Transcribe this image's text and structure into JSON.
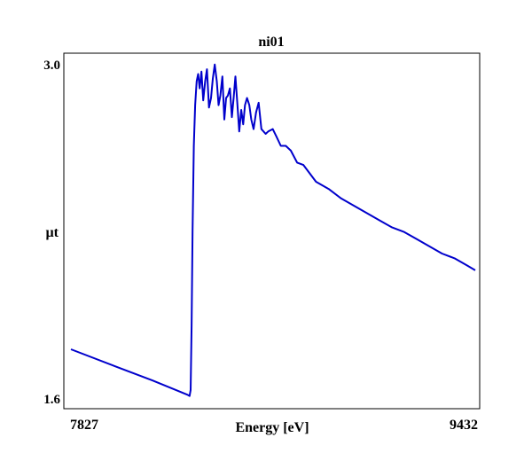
{
  "chart_data": {
    "type": "line",
    "title": "ni01",
    "xlabel": "Energy [eV]",
    "ylabel": "µt",
    "xlim": [
      7827,
      9432
    ],
    "ylim": [
      1.6,
      3.0
    ],
    "x_tick_labels": [
      "7827",
      "9432"
    ],
    "y_tick_labels": [
      "1.6",
      "3.0"
    ],
    "grid": false,
    "line_color": "#0000cc",
    "series": [
      {
        "x": [
          7827,
          8000,
          8150,
          8290,
          8298,
          8302,
          8306,
          8310,
          8315,
          8320,
          8326,
          8332,
          8338,
          8345,
          8352,
          8360,
          8367,
          8375,
          8383,
          8390,
          8398,
          8406,
          8413,
          8420,
          8428,
          8436,
          8443,
          8450,
          8458,
          8466,
          8473,
          8480,
          8488,
          8495,
          8503,
          8511,
          8518,
          8526,
          8535,
          8543,
          8552,
          8562,
          8572,
          8583,
          8600,
          8610,
          8628,
          8642,
          8660,
          8680,
          8700,
          8725,
          8750,
          8800,
          8850,
          8900,
          8950,
          9000,
          9050,
          9100,
          9150,
          9200,
          9250,
          9300,
          9350,
          9400,
          9432
        ],
        "y": [
          1.8,
          1.73,
          1.67,
          1.61,
          1.605,
          1.63,
          1.9,
          2.3,
          2.65,
          2.82,
          2.92,
          2.95,
          2.89,
          2.96,
          2.84,
          2.92,
          2.97,
          2.81,
          2.85,
          2.93,
          2.99,
          2.92,
          2.82,
          2.86,
          2.94,
          2.76,
          2.85,
          2.86,
          2.89,
          2.77,
          2.85,
          2.94,
          2.82,
          2.71,
          2.8,
          2.74,
          2.82,
          2.85,
          2.82,
          2.76,
          2.72,
          2.79,
          2.83,
          2.72,
          2.7,
          2.71,
          2.72,
          2.69,
          2.65,
          2.65,
          2.63,
          2.58,
          2.57,
          2.5,
          2.47,
          2.43,
          2.4,
          2.37,
          2.34,
          2.31,
          2.29,
          2.26,
          2.23,
          2.2,
          2.18,
          2.15,
          2.13
        ]
      }
    ]
  }
}
